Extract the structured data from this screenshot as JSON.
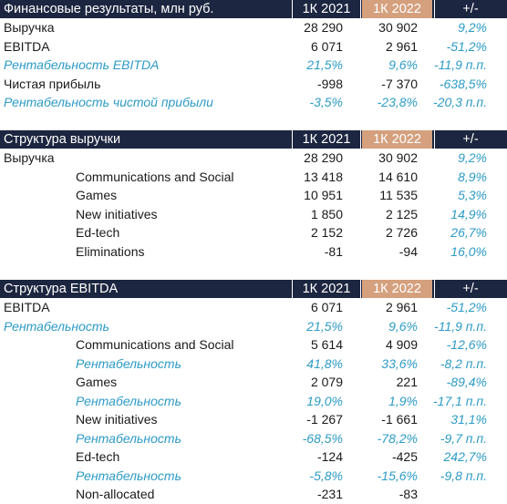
{
  "tables": [
    {
      "title": "Финансовые результаты, млн руб.",
      "col1": "1К 2021",
      "col2": "1К 2022",
      "col3": "+/-",
      "rows": [
        {
          "label": "Выручка",
          "v1": "28 290",
          "v2": "30 902",
          "v3": "9,2%",
          "italic": false,
          "indent": false
        },
        {
          "label": "EBITDA",
          "v1": "6 071",
          "v2": "2 961",
          "v3": "-51,2%",
          "italic": false,
          "indent": false
        },
        {
          "label": "Рентабельность EBITDA",
          "v1": "21,5%",
          "v2": "9,6%",
          "v3": "-11,9 п.п.",
          "italic": true,
          "indent": false
        },
        {
          "label": "Чистая прибыль",
          "v1": "-998",
          "v2": "-7 370",
          "v3": "-638,5%",
          "italic": false,
          "indent": false
        },
        {
          "label": "Рентабельность чистой прибыли",
          "v1": "-3,5%",
          "v2": "-23,8%",
          "v3": "-20,3 п.п.",
          "italic": true,
          "indent": false
        }
      ]
    },
    {
      "title": "Структура выручки",
      "col1": "1К 2021",
      "col2": "1К 2022",
      "col3": "+/-",
      "rows": [
        {
          "label": "Выручка",
          "v1": "28 290",
          "v2": "30 902",
          "v3": "9,2%",
          "italic": false,
          "indent": false
        },
        {
          "label": "Communications and Social",
          "v1": "13 418",
          "v2": "14 610",
          "v3": "8,9%",
          "italic": false,
          "indent": true
        },
        {
          "label": "Games",
          "v1": "10 951",
          "v2": "11 535",
          "v3": "5,3%",
          "italic": false,
          "indent": true
        },
        {
          "label": "New initiatives",
          "v1": "1 850",
          "v2": "2 125",
          "v3": "14,9%",
          "italic": false,
          "indent": true
        },
        {
          "label": "Ed-tech",
          "v1": "2 152",
          "v2": "2 726",
          "v3": "26,7%",
          "italic": false,
          "indent": true
        },
        {
          "label": "Eliminations",
          "v1": "-81",
          "v2": "-94",
          "v3": "16,0%",
          "italic": false,
          "indent": true
        }
      ]
    },
    {
      "title": "Структура EBITDA",
      "col1": "1К 2021",
      "col2": "1К 2022",
      "col3": "+/-",
      "rows": [
        {
          "label": "EBITDA",
          "v1": "6 071",
          "v2": "2 961",
          "v3": "-51,2%",
          "italic": false,
          "indent": false
        },
        {
          "label": "Рентабельность",
          "v1": "21,5%",
          "v2": "9,6%",
          "v3": "-11,9 п.п.",
          "italic": true,
          "indent": false
        },
        {
          "label": "Communications and Social",
          "v1": "5 614",
          "v2": "4 909",
          "v3": "-12,6%",
          "italic": false,
          "indent": true
        },
        {
          "label": "Рентабельность",
          "v1": "41,8%",
          "v2": "33,6%",
          "v3": "-8,2 п.п.",
          "italic": true,
          "indent": true
        },
        {
          "label": "Games",
          "v1": "2 079",
          "v2": "221",
          "v3": "-89,4%",
          "italic": false,
          "indent": true
        },
        {
          "label": "Рентабельность",
          "v1": "19,0%",
          "v2": "1,9%",
          "v3": "-17,1 п.п.",
          "italic": true,
          "indent": true
        },
        {
          "label": "New initiatives",
          "v1": "-1 267",
          "v2": "-1 661",
          "v3": "31,1%",
          "italic": false,
          "indent": true
        },
        {
          "label": "Рентабельность",
          "v1": "-68,5%",
          "v2": "-78,2%",
          "v3": "-9,7 п.п.",
          "italic": true,
          "indent": true
        },
        {
          "label": "Ed-tech",
          "v1": "-124",
          "v2": "-425",
          "v3": "242,7%",
          "italic": false,
          "indent": true
        },
        {
          "label": "Рентабельность",
          "v1": "-5,8%",
          "v2": "-15,6%",
          "v3": "-9,8 п.п.",
          "italic": true,
          "indent": true
        },
        {
          "label": "Non-allocated",
          "v1": "-231",
          "v2": "-83",
          "v3": "",
          "italic": false,
          "indent": true
        }
      ]
    }
  ]
}
